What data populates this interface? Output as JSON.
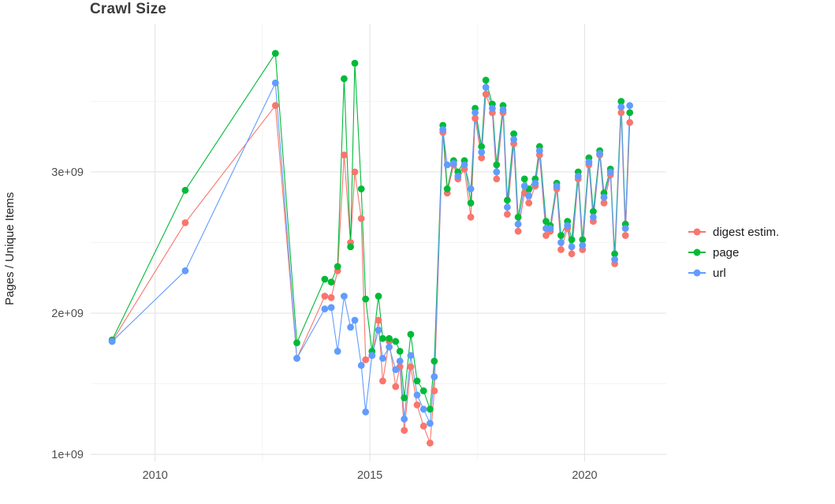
{
  "title": "Crawl Size",
  "y_axis_label": "Pages / Unique Items",
  "legend": {
    "items": [
      {
        "label": "digest estim.",
        "color": "#F8766D"
      },
      {
        "label": "page",
        "color": "#00BA38"
      },
      {
        "label": "url",
        "color": "#619CFF"
      }
    ]
  },
  "chart_data": {
    "type": "line",
    "title": "Crawl Size",
    "xlabel": "",
    "ylabel": "Pages / Unique Items",
    "y_unit": "items, values in billions (1e+09)",
    "xlim": [
      2008.5,
      2021.9
    ],
    "ylim": [
      0.95,
      4.05
    ],
    "grid": true,
    "legend_position": "right",
    "grid_major_color": "#e4e4e4",
    "grid_minor_color": "#f1f1f1",
    "x_ticks": [
      {
        "value": 2010,
        "label": "2010"
      },
      {
        "value": 2015,
        "label": "2015"
      },
      {
        "value": 2020,
        "label": "2020"
      }
    ],
    "y_ticks": [
      {
        "value": 1,
        "label": "1e+09"
      },
      {
        "value": 2,
        "label": "2e+09"
      },
      {
        "value": 3,
        "label": "3e+09"
      }
    ],
    "x_minor": [
      2012.5,
      2017.5
    ],
    "y_minor": [
      1.5,
      2.5,
      3.5
    ],
    "x": [
      2009.0,
      2010.7,
      2012.8,
      2013.3,
      2013.95,
      2014.1,
      2014.25,
      2014.4,
      2014.55,
      2014.65,
      2014.8,
      2014.9,
      2015.05,
      2015.2,
      2015.3,
      2015.45,
      2015.6,
      2015.7,
      2015.8,
      2015.95,
      2016.1,
      2016.25,
      2016.4,
      2016.5,
      2016.7,
      2016.8,
      2016.95,
      2017.05,
      2017.2,
      2017.35,
      2017.45,
      2017.6,
      2017.7,
      2017.85,
      2017.95,
      2018.1,
      2018.2,
      2018.35,
      2018.45,
      2018.6,
      2018.7,
      2018.85,
      2018.95,
      2019.1,
      2019.2,
      2019.35,
      2019.45,
      2019.6,
      2019.7,
      2019.85,
      2019.95,
      2020.1,
      2020.2,
      2020.35,
      2020.45,
      2020.6,
      2020.7,
      2020.85,
      2020.95,
      2021.05
    ],
    "series": [
      {
        "name": "digest estim.",
        "color": "#F8766D",
        "values": [
          1.8,
          2.64,
          3.47,
          1.68,
          2.12,
          2.11,
          2.3,
          3.12,
          2.5,
          3.0,
          2.67,
          1.67,
          1.7,
          1.95,
          1.52,
          1.8,
          1.48,
          1.62,
          1.17,
          1.62,
          1.35,
          1.2,
          1.08,
          1.45,
          3.28,
          2.85,
          3.05,
          2.95,
          3.02,
          2.68,
          3.38,
          3.1,
          3.55,
          3.42,
          2.95,
          3.42,
          2.7,
          3.2,
          2.58,
          2.85,
          2.78,
          2.9,
          3.12,
          2.55,
          2.58,
          2.88,
          2.45,
          2.6,
          2.42,
          2.95,
          2.45,
          3.05,
          2.65,
          3.12,
          2.78,
          2.98,
          2.35,
          3.42,
          2.55,
          3.35
        ]
      },
      {
        "name": "page",
        "color": "#00BA38",
        "values": [
          1.81,
          2.87,
          3.84,
          1.79,
          2.24,
          2.22,
          2.33,
          3.66,
          2.47,
          3.77,
          2.88,
          2.1,
          1.73,
          2.12,
          1.82,
          1.82,
          1.8,
          1.73,
          1.4,
          1.85,
          1.52,
          1.45,
          1.32,
          1.66,
          3.33,
          2.88,
          3.08,
          3.0,
          3.08,
          2.78,
          3.45,
          3.18,
          3.65,
          3.48,
          3.05,
          3.47,
          2.8,
          3.27,
          2.68,
          2.95,
          2.88,
          2.95,
          3.18,
          2.65,
          2.62,
          2.92,
          2.55,
          2.65,
          2.52,
          3.0,
          2.52,
          3.1,
          2.72,
          3.15,
          2.85,
          3.02,
          2.42,
          3.5,
          2.63,
          3.42
        ]
      },
      {
        "name": "url",
        "color": "#619CFF",
        "values": [
          1.8,
          2.3,
          3.63,
          1.68,
          2.03,
          2.04,
          1.73,
          2.12,
          1.9,
          1.95,
          1.63,
          1.3,
          1.7,
          1.88,
          1.68,
          1.76,
          1.6,
          1.66,
          1.25,
          1.7,
          1.42,
          1.32,
          1.22,
          1.55,
          3.3,
          3.05,
          3.06,
          2.97,
          3.05,
          2.88,
          3.42,
          3.14,
          3.6,
          3.45,
          3.0,
          3.44,
          2.75,
          3.23,
          2.63,
          2.9,
          2.83,
          2.92,
          3.15,
          2.6,
          2.6,
          2.9,
          2.5,
          2.62,
          2.47,
          2.97,
          2.48,
          3.07,
          2.68,
          3.13,
          2.82,
          3.0,
          2.38,
          3.46,
          2.6,
          3.47
        ]
      }
    ]
  }
}
